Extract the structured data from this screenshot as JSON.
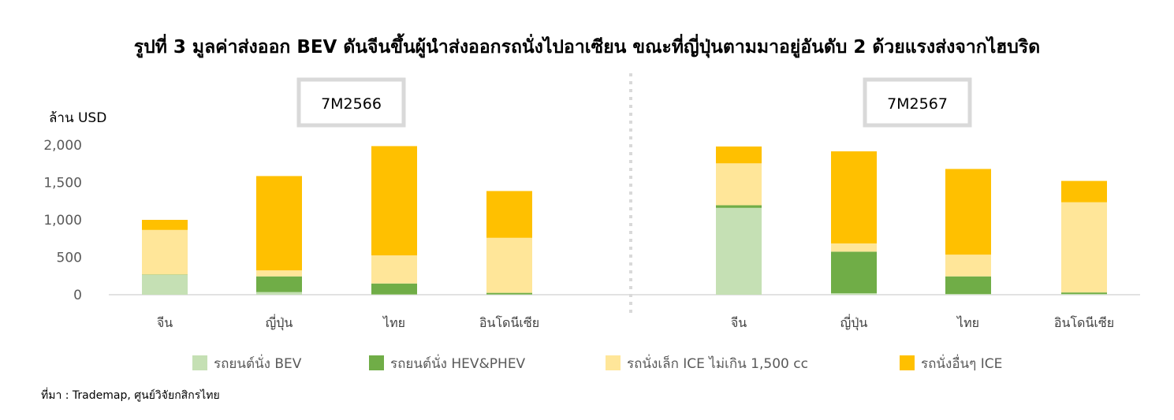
{
  "title": "รูปที่ 3 มูลค่าส่งออก BEV ดันจีนขึ้นผู้นำส่งออกรถนั่งไปอาเซียน ขณะที่ญี่ปุ่นตามมาอยู่อันดับ 2 ด้วยแรงส่งจากไฮบริด",
  "source": "ที่มา : Trademap, ศูนย์วิจัยกสิกรไทย",
  "chart_data": {
    "type": "bar",
    "stacked": true,
    "ylabel": "ล้าน USD",
    "ylim": [
      0,
      2000
    ],
    "yticks": [
      "0",
      "500",
      "1,000",
      "1,500",
      "2,000"
    ],
    "yticks_values": [
      0,
      500,
      1000,
      1500,
      2000
    ],
    "grid": false,
    "legend_position": "bottom",
    "series_names": [
      "รถยนต์นั่ง BEV",
      "รถยนต์นั่ง HEV&PHEV",
      "รถนั่งเล็ก ICE ไม่เกิน 1,500 cc",
      "รถนั่งอื่นๆ ICE"
    ],
    "colors": [
      "#c5e0b4",
      "#70ad47",
      "#ffe699",
      "#ffc000"
    ],
    "panels": [
      {
        "period": "7M2566",
        "categories": [
          "จีน",
          "ญี่ปุ่น",
          "ไทย",
          "อินโดนีเซีย"
        ],
        "values": [
          [
            265,
            5,
            595,
            135
          ],
          [
            35,
            210,
            80,
            1260
          ],
          [
            5,
            145,
            375,
            1460
          ],
          [
            5,
            20,
            735,
            625
          ]
        ]
      },
      {
        "period": "7M2567",
        "categories": [
          "จีน",
          "ญี่ปุ่น",
          "ไทย",
          "อินโดนีเซีย"
        ],
        "values": [
          [
            1160,
            35,
            560,
            225
          ],
          [
            20,
            555,
            110,
            1230
          ],
          [
            10,
            235,
            290,
            1145
          ],
          [
            10,
            20,
            1205,
            285
          ]
        ]
      }
    ]
  }
}
